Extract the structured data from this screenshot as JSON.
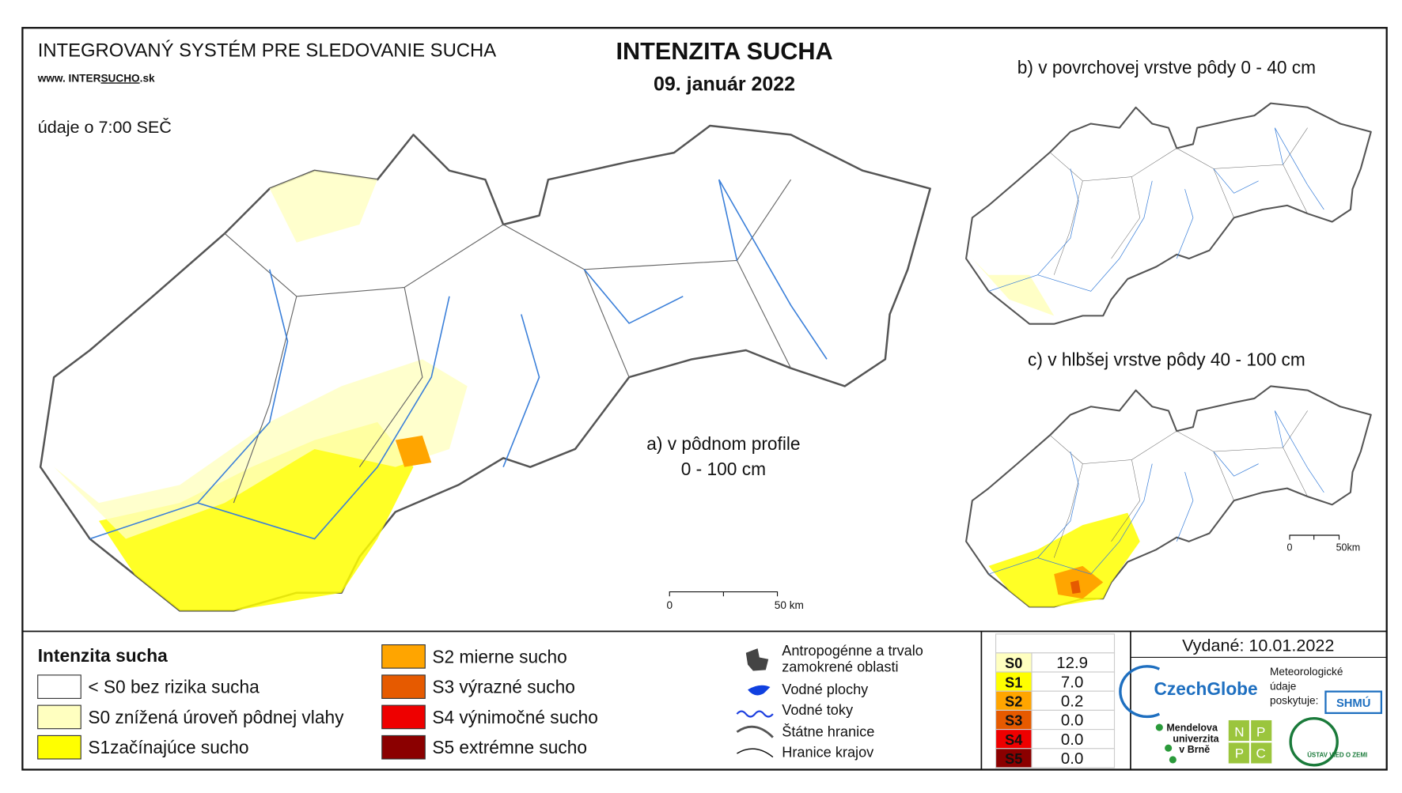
{
  "header": {
    "system_title": "INTEGROVANÝ SYSTÉM PRE SLEDOVANIE SUCHA",
    "website": [
      "www. INTER",
      "SUCHO",
      ".sk"
    ],
    "data_time": "údaje o 7:00 SEČ",
    "main_title": "INTENZITA SUCHA",
    "date": "09. január 2022"
  },
  "maps": {
    "a": [
      "a) v pôdnom profile",
      "0 - 100 cm"
    ],
    "b": "b) v povrchovej vrstve pôdy 0 - 40 cm",
    "c": "c) v hlbšej vrstve pôdy 40 - 100 cm"
  },
  "scale_main": [
    "0",
    "50 km"
  ],
  "scale_inset": [
    "0",
    "50km"
  ],
  "legend": {
    "title": "Intenzita sucha",
    "items": [
      {
        "label": "< S0 bez rizika sucha",
        "color": "#ffffff"
      },
      {
        "label": "S0 znížená úroveň pôdnej vlahy",
        "color": "#ffffc0"
      },
      {
        "label": "S1začínajúce sucho",
        "color": "#ffff00"
      },
      {
        "label": "S2 mierne sucho",
        "color": "#ffa500"
      },
      {
        "label": "S3 výrazné sucho",
        "color": "#e65a00"
      },
      {
        "label": "S4 výnimočné sucho",
        "color": "#ee0000"
      },
      {
        "label": "S5 extrémne sucho",
        "color": "#8b0000"
      }
    ]
  },
  "symbols": [
    "Antropogénne a trvalo",
    "zamokrené oblasti",
    "Vodné plochy",
    "Vodné toky",
    "Štátne hranice",
    "Hranice krajov"
  ],
  "stats": {
    "header": "%",
    "rows": [
      {
        "code": "S0",
        "color": "#ffffc0",
        "value": "12.9"
      },
      {
        "code": "S1",
        "color": "#ffff00",
        "value": "7.0"
      },
      {
        "code": "S2",
        "color": "#ffa500",
        "value": "0.2"
      },
      {
        "code": "S3",
        "color": "#e65a00",
        "value": "0.0"
      },
      {
        "code": "S4",
        "color": "#ee0000",
        "value": "0.0"
      },
      {
        "code": "S5",
        "color": "#8b0000",
        "value": "0.0"
      }
    ]
  },
  "issued": "Vydané: 10.01.2022",
  "logos": {
    "czechglobe": "CzechGlobe",
    "meteo": [
      "Meteorologické",
      "údaje",
      "poskytuje:"
    ],
    "shmu": "SHMÚ",
    "mendel": [
      "Mendelova",
      "univerzita",
      "v Brně"
    ],
    "nppc": [
      "N",
      "P",
      "P",
      "C"
    ],
    "uvz": "ÚSTAV VIED O ZEMI"
  }
}
